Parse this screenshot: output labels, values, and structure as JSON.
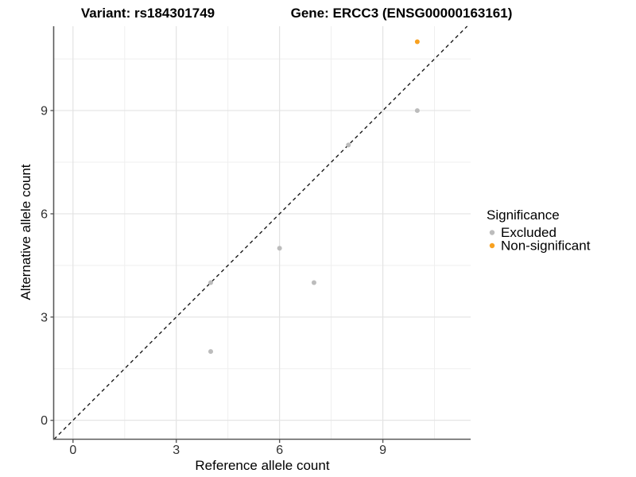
{
  "header": {
    "variant_title": "Variant: rs184301749",
    "gene_title": "Gene: ERCC3 (ENSG00000163161)"
  },
  "chart_data": {
    "type": "scatter",
    "xlabel": "Reference allele count",
    "ylabel": "Alternative allele count",
    "xticks": [
      0,
      3,
      6,
      9
    ],
    "yticks": [
      0,
      3,
      6,
      9
    ],
    "x_minor_gridlines": [
      1.5,
      4.5,
      7.5,
      10.5
    ],
    "y_minor_gridlines": [
      1.5,
      4.5,
      7.5,
      10.5
    ],
    "xlim": [
      -0.55,
      11.55
    ],
    "ylim": [
      -0.55,
      11.45
    ],
    "grid": true,
    "legend": {
      "title": "Significance",
      "position": "right"
    },
    "identity_line": {
      "type": "dashed",
      "equation": "y = x",
      "color": "#1a1a1a"
    },
    "series": [
      {
        "name": "Excluded",
        "color": "#bcbcbc",
        "points": [
          {
            "x": 4,
            "y": 2
          },
          {
            "x": 4,
            "y": 4
          },
          {
            "x": 6,
            "y": 5
          },
          {
            "x": 7,
            "y": 4
          },
          {
            "x": 8,
            "y": 8
          },
          {
            "x": 10,
            "y": 9
          }
        ]
      },
      {
        "name": "Non-significant",
        "color": "#f8a120",
        "points": [
          {
            "x": 10,
            "y": 11
          }
        ]
      }
    ],
    "colors": {
      "major_grid": "#e3e3e3",
      "minor_grid": "#efefef",
      "axis_line": "#5a5a5a"
    }
  }
}
